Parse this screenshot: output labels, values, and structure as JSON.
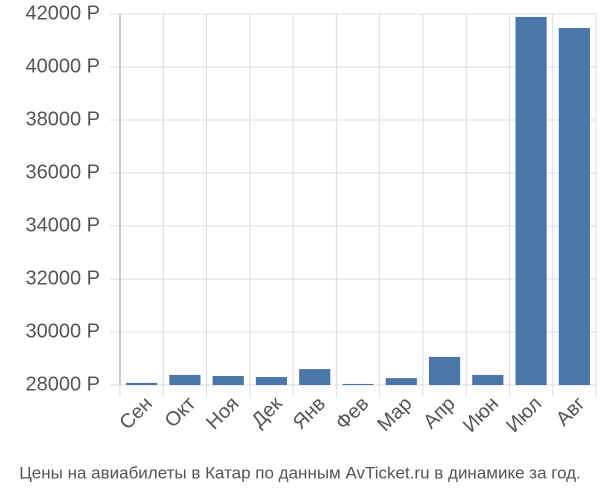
{
  "chart_data": {
    "type": "bar",
    "caption": "Цены на авиабилеты в Катар по данным AvTicket.ru в динамике за год.",
    "categories": [
      "Сен",
      "Окт",
      "Ноя",
      "Дек",
      "Янв",
      "Фев",
      "Мар",
      "Апр",
      "Июн",
      "Июл",
      "Авг"
    ],
    "values": [
      28080,
      28380,
      28340,
      28300,
      28600,
      28040,
      28260,
      29060,
      28380,
      41890,
      41470
    ],
    "color": "#4a76a8",
    "ylim": [
      28000,
      42000
    ],
    "yticks": [
      {
        "value": 28000,
        "label": "28000 Р"
      },
      {
        "value": 30000,
        "label": "30000 Р"
      },
      {
        "value": 32000,
        "label": "32000 Р"
      },
      {
        "value": 34000,
        "label": "34000 Р"
      },
      {
        "value": 36000,
        "label": "36000 Р"
      },
      {
        "value": 38000,
        "label": "38000 Р"
      },
      {
        "value": 40000,
        "label": "40000 Р"
      },
      {
        "value": 42000,
        "label": "42000 Р"
      }
    ],
    "grid": true
  }
}
